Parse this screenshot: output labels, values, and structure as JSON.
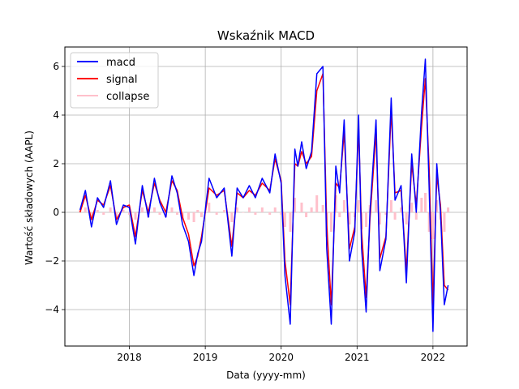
{
  "chart_data": {
    "type": "line",
    "title": "Wskaźnik MACD",
    "xlabel": "Data (yyyy-mm)",
    "ylabel": "Wartość składowych (AAPL)",
    "xlim": [
      2017.15,
      2022.45
    ],
    "ylim": [
      -5.5,
      6.8
    ],
    "x_ticks": [
      2018,
      2019,
      2020,
      2021,
      2022
    ],
    "x_tick_labels": [
      "2018",
      "2019",
      "2020",
      "2021",
      "2022"
    ],
    "y_ticks": [
      -4,
      -2,
      0,
      2,
      4,
      6
    ],
    "y_tick_labels": [
      "−4",
      "−2",
      "0",
      "2",
      "4",
      "6"
    ],
    "grid": true,
    "legend_position": "top-left",
    "x": [
      2017.35,
      2017.42,
      2017.5,
      2017.58,
      2017.66,
      2017.75,
      2017.83,
      2017.92,
      2018.0,
      2018.08,
      2018.17,
      2018.25,
      2018.33,
      2018.4,
      2018.48,
      2018.56,
      2018.63,
      2018.7,
      2018.78,
      2018.85,
      2018.9,
      2018.95,
      2019.05,
      2019.15,
      2019.25,
      2019.35,
      2019.42,
      2019.5,
      2019.58,
      2019.66,
      2019.75,
      2019.85,
      2019.92,
      2020.0,
      2020.05,
      2020.12,
      2020.18,
      2020.22,
      2020.27,
      2020.33,
      2020.4,
      2020.47,
      2020.55,
      2020.6,
      2020.66,
      2020.72,
      2020.77,
      2020.83,
      2020.9,
      2020.97,
      2021.02,
      2021.06,
      2021.12,
      2021.17,
      2021.25,
      2021.3,
      2021.38,
      2021.45,
      2021.5,
      2021.58,
      2021.65,
      2021.72,
      2021.78,
      2021.85,
      2021.9,
      2021.95,
      2022.0,
      2022.05,
      2022.1,
      2022.15,
      2022.2
    ],
    "series": [
      {
        "name": "macd",
        "color": "#0000ff",
        "values": [
          0.1,
          0.9,
          -0.6,
          0.6,
          0.2,
          1.3,
          -0.5,
          0.3,
          0.2,
          -1.3,
          1.1,
          -0.2,
          1.4,
          0.4,
          -0.2,
          1.5,
          0.8,
          -0.5,
          -1.2,
          -2.6,
          -1.7,
          -1.2,
          1.4,
          0.6,
          1.0,
          -1.8,
          1.0,
          0.6,
          1.1,
          0.6,
          1.4,
          0.8,
          2.4,
          1.2,
          -2.6,
          -4.6,
          2.6,
          1.9,
          2.9,
          1.8,
          2.5,
          5.7,
          6.0,
          -1.5,
          -4.6,
          1.9,
          0.8,
          3.8,
          -2.0,
          -0.8,
          4.0,
          -1.5,
          -4.1,
          0.0,
          3.8,
          -2.4,
          -1.1,
          4.7,
          0.5,
          1.1,
          -2.9,
          2.4,
          0.0,
          4.1,
          6.3,
          1.0,
          -4.9,
          2.0,
          0.0,
          -3.8,
          -3.0
        ]
      },
      {
        "name": "signal",
        "color": "#ff0000",
        "values": [
          0.0,
          0.7,
          -0.3,
          0.5,
          0.3,
          1.1,
          -0.3,
          0.2,
          0.3,
          -1.0,
          0.9,
          0.0,
          1.2,
          0.5,
          0.0,
          1.3,
          0.9,
          -0.2,
          -0.9,
          -2.2,
          -1.8,
          -1.0,
          1.0,
          0.7,
          0.9,
          -1.4,
          0.8,
          0.6,
          0.9,
          0.7,
          1.2,
          0.9,
          2.2,
          1.3,
          -2.0,
          -3.8,
          2.0,
          1.9,
          2.5,
          2.0,
          2.3,
          5.0,
          5.7,
          -0.5,
          -3.8,
          1.2,
          1.0,
          3.3,
          -1.5,
          -0.6,
          3.5,
          -0.8,
          -3.5,
          -0.3,
          3.3,
          -1.9,
          -1.0,
          4.2,
          0.8,
          0.9,
          -2.4,
          2.0,
          0.3,
          3.5,
          5.5,
          1.8,
          -3.8,
          1.5,
          0.3,
          -3.0,
          -3.2
        ]
      },
      {
        "name": "collapse",
        "color": "#ffc0cb",
        "values": [
          0.1,
          0.2,
          -0.3,
          0.1,
          -0.1,
          0.2,
          -0.2,
          0.1,
          -0.1,
          -0.3,
          0.2,
          -0.2,
          0.2,
          -0.1,
          -0.2,
          0.2,
          -0.1,
          -0.3,
          -0.3,
          -0.4,
          0.1,
          -0.2,
          0.4,
          -0.1,
          0.1,
          -0.4,
          0.2,
          0.0,
          0.2,
          -0.1,
          0.2,
          -0.1,
          0.2,
          -0.1,
          -0.6,
          -0.8,
          0.6,
          0.0,
          0.4,
          -0.2,
          0.2,
          0.7,
          0.3,
          -1.0,
          -0.8,
          0.7,
          -0.2,
          0.5,
          -0.5,
          -0.2,
          0.5,
          -0.7,
          -0.6,
          0.3,
          0.5,
          -0.5,
          -0.1,
          0.5,
          -0.3,
          0.2,
          -0.5,
          0.4,
          -0.3,
          0.6,
          0.8,
          -0.8,
          -1.1,
          0.5,
          -0.3,
          -0.8,
          0.2
        ]
      }
    ],
    "legend": [
      {
        "label": "macd",
        "color": "#0000ff"
      },
      {
        "label": "signal",
        "color": "#ff0000"
      },
      {
        "label": "collapse",
        "color": "#ffc0cb"
      }
    ]
  }
}
